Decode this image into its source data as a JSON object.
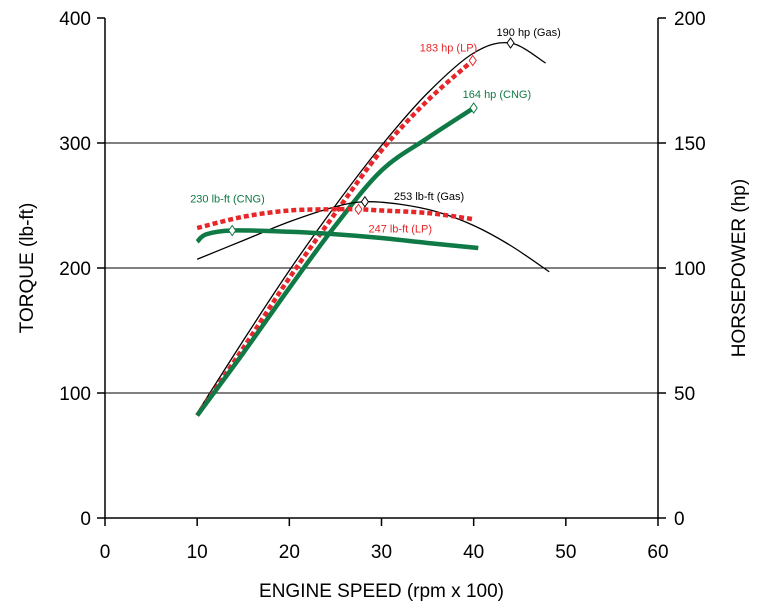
{
  "chart_data": {
    "type": "line",
    "xlabel": "ENGINE SPEED (rpm x 100)",
    "ylabel": "TORQUE (lb-ft)",
    "y2label": "HORSEPOWER (hp)",
    "xlim": [
      0,
      60
    ],
    "ylim": [
      0,
      400
    ],
    "y2lim": [
      0,
      200
    ],
    "x_ticks": [
      0,
      10,
      20,
      30,
      40,
      50,
      60
    ],
    "y_ticks": [
      0,
      100,
      200,
      300,
      400
    ],
    "y2_ticks": [
      0,
      50,
      100,
      150,
      200
    ],
    "grid": "horizontal",
    "colors": {
      "gas": "#000000",
      "lp": "#e8262a",
      "cng": "#0f7a45"
    },
    "series": [
      {
        "name": "Gas",
        "axis": "horsepower",
        "color": "#000000",
        "x": [
          10,
          15,
          20,
          25,
          30,
          35,
          40,
          44,
          47.8
        ],
        "values": [
          42,
          71,
          99,
          125,
          149,
          170,
          186,
          190,
          182
        ]
      },
      {
        "name": "LP",
        "axis": "horsepower",
        "color": "#e8262a",
        "x": [
          10,
          15,
          20,
          25,
          30,
          35,
          39.9
        ],
        "values": [
          41,
          68,
          96,
          122,
          147,
          167,
          183
        ]
      },
      {
        "name": "CNG",
        "axis": "horsepower",
        "color": "#0f7a45",
        "x": [
          10,
          15,
          20,
          25,
          30,
          35,
          40
        ],
        "values": [
          41,
          66,
          92,
          117,
          139,
          152,
          164
        ]
      },
      {
        "name": "Gas",
        "axis": "torque",
        "color": "#000000",
        "x": [
          10,
          15,
          20,
          25,
          28.2,
          32,
          36,
          40,
          44,
          48.2
        ],
        "values": [
          207,
          222,
          237,
          249,
          253,
          251,
          245,
          234,
          218,
          197
        ]
      },
      {
        "name": "LP",
        "axis": "torque",
        "color": "#e8262a",
        "x": [
          10,
          15,
          20,
          25,
          27.5,
          30,
          35,
          40
        ],
        "values": [
          232,
          241,
          246,
          247,
          247,
          246,
          244,
          239
        ]
      },
      {
        "name": "CNG",
        "axis": "torque",
        "color": "#0f7a45",
        "x": [
          10,
          11,
          13.8,
          20,
          25,
          30,
          35,
          40.5
        ],
        "values": [
          221,
          227,
          230,
          229,
          227,
          224,
          220,
          216
        ]
      }
    ],
    "annotations": [
      {
        "text": "190 hp (Gas)",
        "x": 44,
        "y": 190,
        "axis": "horsepower",
        "color": "#000000",
        "marker": true
      },
      {
        "text": "183 hp (LP)",
        "x": 39.9,
        "y": 183,
        "axis": "horsepower",
        "color": "#e8262a",
        "marker": true
      },
      {
        "text": "164 hp (CNG)",
        "x": 40,
        "y": 164,
        "axis": "horsepower",
        "color": "#0f7a45",
        "marker": true
      },
      {
        "text": "253 lb-ft (Gas)",
        "x": 28.2,
        "y": 253,
        "axis": "torque",
        "color": "#000000",
        "marker": true
      },
      {
        "text": "247 lb-ft (LP)",
        "x": 27.5,
        "y": 247,
        "axis": "torque",
        "color": "#e8262a",
        "marker": true
      },
      {
        "text": "230 lb-ft (CNG)",
        "x": 13.8,
        "y": 230,
        "axis": "torque",
        "color": "#0f7a45",
        "marker": true
      }
    ]
  }
}
